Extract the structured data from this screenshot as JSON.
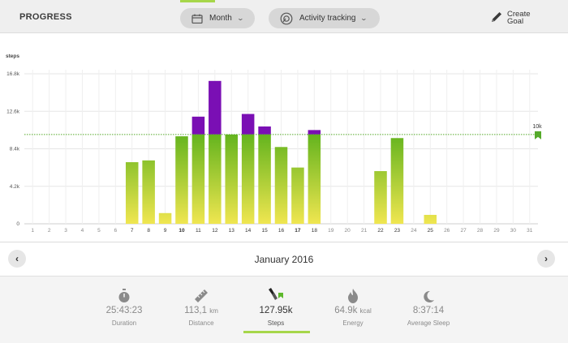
{
  "header": {
    "title": "PROGRESS",
    "period_label": "Month",
    "activity_label": "Activity tracking",
    "create_goal": [
      "Create",
      "Goal"
    ]
  },
  "navigation": {
    "prev_icon": "chevron-left-icon",
    "next_icon": "chevron-right-icon",
    "month_label": "January 2016"
  },
  "summary": [
    {
      "icon": "stopwatch-icon",
      "value": "25:43:23",
      "unit": "",
      "label": "Duration",
      "active": false
    },
    {
      "icon": "ruler-icon",
      "value": "113,1",
      "unit": "km",
      "label": "Distance",
      "active": false
    },
    {
      "icon": "shoe-icon",
      "value": "127.95k",
      "unit": "",
      "label": "Steps",
      "active": true
    },
    {
      "icon": "flame-icon",
      "value": "64.9k",
      "unit": "kcal",
      "label": "Energy",
      "active": false
    },
    {
      "icon": "moon-icon",
      "value": "8:37:14",
      "unit": "",
      "label": "Average Sleep",
      "active": false
    }
  ],
  "colors": {
    "accent": "#a6d64a",
    "bar_top": "#64b41e",
    "bar_bottom": "#f0e650",
    "over_goal": "#7a0fb4",
    "goal_line": "#55aa2a"
  },
  "chart_data": {
    "type": "bar",
    "ylabel": "steps",
    "ylim": [
      0,
      16800
    ],
    "yticks": [
      "0",
      "4.2k",
      "8.4k",
      "12.6k",
      "16.8k"
    ],
    "ytick_values": [
      0,
      4200,
      8400,
      12600,
      16800
    ],
    "goal_label": "10k",
    "goal": 10000,
    "grid": true,
    "categories": [
      "1",
      "2",
      "3",
      "4",
      "5",
      "6",
      "7",
      "8",
      "9",
      "10",
      "11",
      "12",
      "13",
      "14",
      "15",
      "16",
      "17",
      "18",
      "19",
      "20",
      "21",
      "22",
      "23",
      "24",
      "25",
      "26",
      "27",
      "28",
      "29",
      "30",
      "31"
    ],
    "values": [
      0,
      0,
      0,
      0,
      0,
      0,
      6900,
      7100,
      1200,
      9800,
      12000,
      16000,
      10000,
      12300,
      10900,
      8600,
      6300,
      10500,
      0,
      0,
      0,
      5900,
      9600,
      0,
      1000,
      0,
      0,
      0,
      0,
      0,
      0
    ]
  }
}
